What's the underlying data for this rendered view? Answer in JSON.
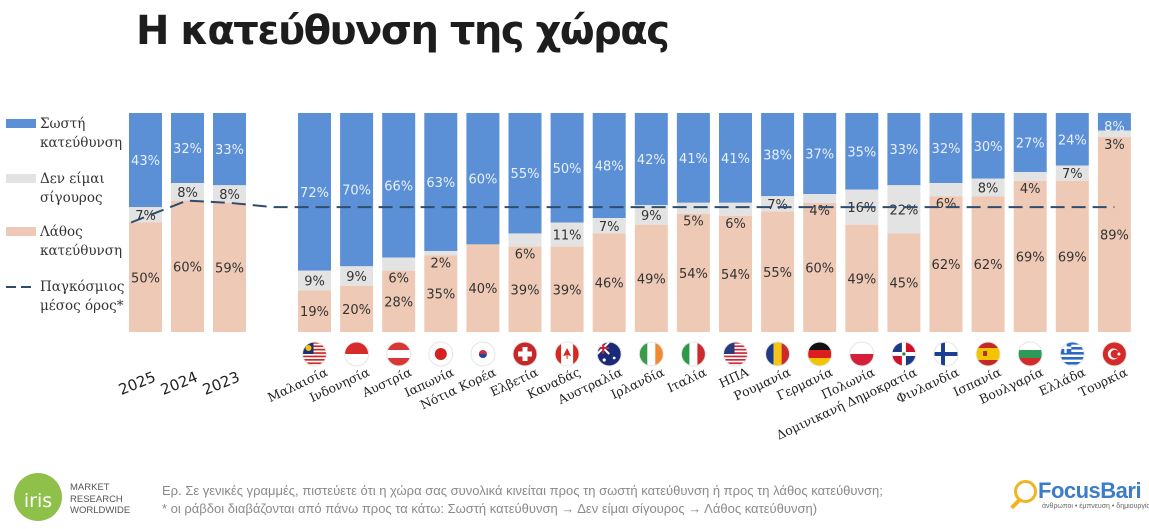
{
  "page": {
    "title": "Η κατεύθυνση της χώρας",
    "question": "Ερ. Σε γενικές γραμμές, πιστεύετε ότι η χώρα σας συνολικά κινείται προς τη σωστή κατεύθυνση ή προς τη λάθος κατεύθυνση;",
    "footnote": "* οι ράβδοι διαβάζονται από πάνω προς τα κάτω: Σωστή κατεύθυνση → Δεν είμαι σίγουρος → Λάθος κατεύθυνση)",
    "logos": {
      "iris": {
        "mark": "iris",
        "lines": [
          "MARKET",
          "RESEARCH",
          "WORLDWIDE"
        ]
      },
      "focus": {
        "name": "FocusBari",
        "tagline": "άνθρωποι • έμπνευση • δημιουργία",
        "icon": "magnifier-icon"
      }
    }
  },
  "chart_data": {
    "type": "bar",
    "stacked": true,
    "normalized": true,
    "title": "Η κατεύθυνση της χώρας",
    "xlabel": "",
    "ylabel": "",
    "ylim": [
      0,
      100
    ],
    "grid": false,
    "legend_position": "left",
    "legend": [
      {
        "key": "right",
        "label": [
          "Σωστή",
          "κατεύθυνση"
        ],
        "color": "#5b8fd6"
      },
      {
        "key": "unsure",
        "label": [
          "Δεν είμαι",
          "σίγουρος"
        ],
        "color": "#e3e3e3"
      },
      {
        "key": "wrong",
        "label": [
          "Λάθος",
          "κατεύθυνση"
        ],
        "color": "#eecab6"
      },
      {
        "key": "global_avg",
        "label": [
          "Παγκόσμιος",
          "μέσος όρος*"
        ],
        "color": "#2e4d6e",
        "style": "dashed"
      }
    ],
    "groups": [
      {
        "name": "years",
        "categories": [
          "2025",
          "2024",
          "2023"
        ],
        "series": [
          {
            "name": "Σωστή κατεύθυνση",
            "values": [
              43,
              32,
              33
            ]
          },
          {
            "name": "Δεν είμαι σίγουρος",
            "values": [
              7,
              8,
              8
            ]
          },
          {
            "name": "Λάθος κατεύθυνση",
            "values": [
              50,
              60,
              59
            ]
          }
        ]
      },
      {
        "name": "countries",
        "categories": [
          "Μαλαισία",
          "Ινδονησία",
          "Αυστρία",
          "Ιαπωνία",
          "Νότια Κορέα",
          "Ελβετία",
          "Καναδάς",
          "Αυστραλία",
          "Ιρλανδία",
          "Ιταλία",
          "ΗΠΑ",
          "Ρουμανία",
          "Γερμανία",
          "Πολωνία",
          "Δομινικανή Δημοκρατία",
          "Φινλανδία",
          "Ισπανία",
          "Βουλγαρία",
          "Ελλάδα",
          "Τουρκία"
        ],
        "flags": [
          "flag-malaysia-icon",
          "flag-indonesia-icon",
          "flag-austria-icon",
          "flag-japan-icon",
          "flag-south-korea-icon",
          "flag-switzerland-icon",
          "flag-canada-icon",
          "flag-australia-icon",
          "flag-ireland-icon",
          "flag-italy-icon",
          "flag-usa-icon",
          "flag-romania-icon",
          "flag-germany-icon",
          "flag-poland-icon",
          "flag-dominican-republic-icon",
          "flag-finland-icon",
          "flag-spain-icon",
          "flag-bulgaria-icon",
          "flag-greece-icon",
          "flag-turkey-icon"
        ],
        "series": [
          {
            "name": "Σωστή κατεύθυνση",
            "values": [
              72,
              70,
              66,
              63,
              60,
              55,
              50,
              48,
              42,
              41,
              41,
              38,
              37,
              35,
              33,
              32,
              30,
              27,
              24,
              8
            ]
          },
          {
            "name": "Δεν είμαι σίγουρος",
            "values": [
              9,
              9,
              6,
              2,
              0,
              6,
              11,
              7,
              9,
              5,
              6,
              7,
              4,
              16,
              22,
              6,
              8,
              4,
              7,
              3
            ]
          },
          {
            "name": "Λάθος κατεύθυνση",
            "values": [
              19,
              20,
              28,
              35,
              40,
              39,
              39,
              46,
              49,
              54,
              54,
              55,
              60,
              49,
              45,
              62,
              62,
              69,
              69,
              89
            ]
          }
        ]
      }
    ],
    "global_average_line": {
      "label": "Παγκόσμιος μέσος όρος*",
      "description": "average share of 'Σωστή κατεύθυνση' + 'Δεν είμαι σίγουρος' boundary",
      "years": [
        50,
        40,
        41
      ],
      "countries": 43
    }
  }
}
